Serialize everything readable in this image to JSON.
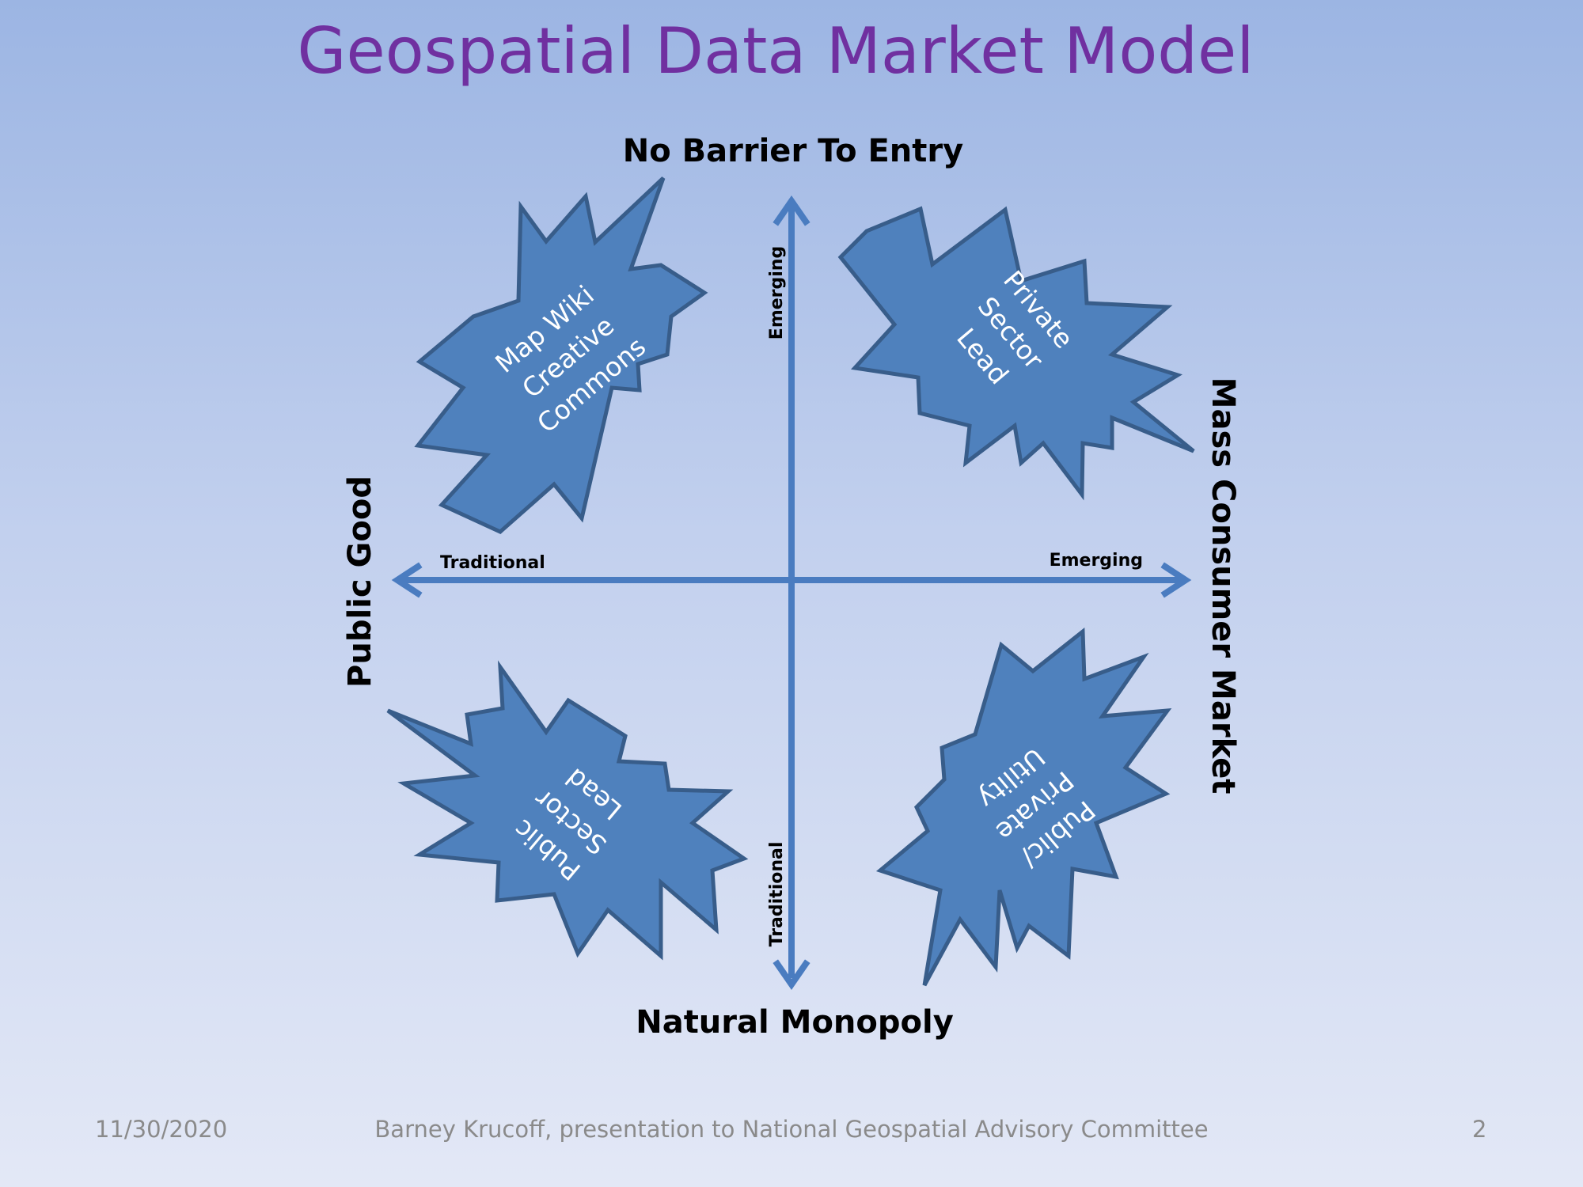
{
  "slide": {
    "title": "Geospatial Data Market Model"
  },
  "axes": {
    "top": "No Barrier To Entry",
    "bottom": "Natural Monopoly",
    "left": "Public  Good",
    "right": "Mass Consumer Market",
    "horizontal_left_tick": "Traditional",
    "horizontal_right_tick": "Emerging",
    "vertical_top_tick": "Emerging",
    "vertical_bottom_tick": "Traditional"
  },
  "quadrants": {
    "top_left": [
      "Map Wiki",
      "Creative",
      "Commons"
    ],
    "top_right": [
      "Private",
      "Sector",
      "Lead"
    ],
    "bottom_left": [
      "Public",
      "Sector",
      "Lead"
    ],
    "bottom_right": [
      "Public/",
      "Private",
      "Utility"
    ]
  },
  "colors": {
    "title": "#7030a0",
    "axis_arrow": "#4a7cc0",
    "burst_fill": "#4f81bd",
    "burst_stroke": "#385d8a"
  },
  "footer": {
    "date": "11/30/2020",
    "credit": "Barney Krucoff, presentation to National Geospatial Advisory Committee",
    "page": "2"
  }
}
